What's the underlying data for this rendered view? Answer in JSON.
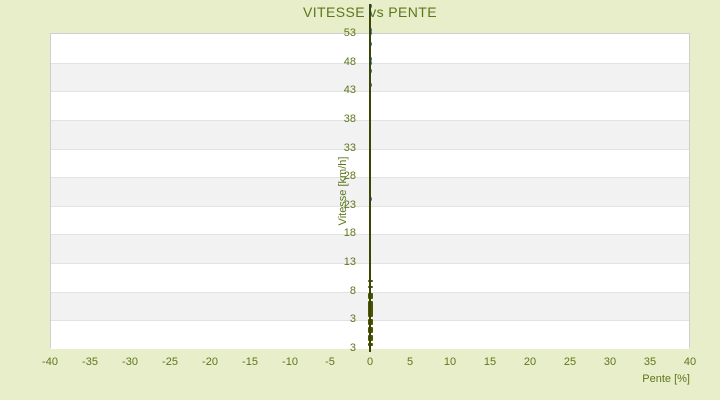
{
  "title": "VITESSE vs PENTE",
  "colors": {
    "background": "#e8edca",
    "text_olive": "#5c771b",
    "band_white": "#ffffff",
    "band_gray": "#f2f2f2",
    "band_boundary": "#e3e3e3",
    "plot_border": "#cfcfcf",
    "zero_line": "#3c4402",
    "series_high": "#3e76b5",
    "series_low": "#4c5504"
  },
  "chart_data": {
    "type": "scatter",
    "title": "VITESSE vs PENTE",
    "xlabel": "Pente [%]",
    "ylabel": "Vitesse [km/h]",
    "xlim": [
      -40,
      40
    ],
    "ylim": [
      -2,
      53
    ],
    "x_ticks": [
      -40,
      -35,
      -30,
      -25,
      -20,
      -15,
      -10,
      -5,
      0,
      5,
      10,
      15,
      20,
      25,
      30,
      35,
      40
    ],
    "y_tick_labels": [
      "53",
      "48",
      "43",
      "38",
      "33",
      "28",
      "23",
      "18",
      "13",
      "8",
      "3",
      "3"
    ],
    "grid": "horizontal-bands",
    "legend": "none",
    "zero_line_x": 0,
    "series": [
      {
        "name": "points-high-speed",
        "marker": "dot",
        "x_constant": 0,
        "values": [
          57.8,
          56.4,
          53.6,
          53.0,
          51.0,
          48.4,
          47.7,
          46.4,
          44.0,
          24.0
        ]
      },
      {
        "name": "dense-low-speed-cluster",
        "marker": "thick-segments",
        "x_constant": 0,
        "segments": [
          [
            9.8,
            9.5
          ],
          [
            8.8,
            8.4
          ],
          [
            7.6,
            6.6
          ],
          [
            6.2,
            3.4
          ],
          [
            3.0,
            2.0
          ],
          [
            1.6,
            0.6
          ],
          [
            0.2,
            -0.8
          ],
          [
            -1.2,
            -1.7
          ]
        ]
      }
    ]
  }
}
